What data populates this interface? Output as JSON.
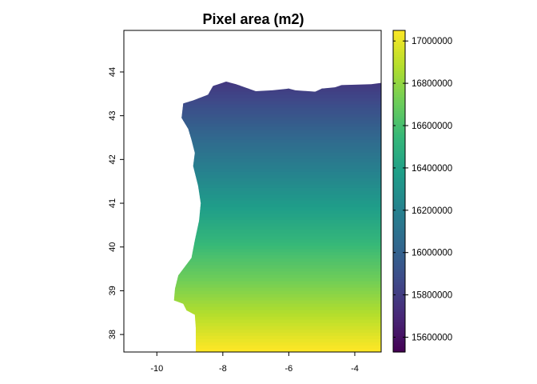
{
  "map": {
    "title": "Pixel area (m2)",
    "type": "raster",
    "extent": {
      "lon_min": -11.0,
      "lon_max": -3.2,
      "lat_min": 37.6,
      "lat_max": 44.95
    },
    "x_ticks": [
      {
        "value": -10,
        "label": "-10"
      },
      {
        "value": -8,
        "label": "-8"
      },
      {
        "value": -6,
        "label": "-6"
      },
      {
        "value": -4,
        "label": "-4"
      }
    ],
    "y_ticks": [
      {
        "value": 38,
        "label": "38"
      },
      {
        "value": 39,
        "label": "39"
      },
      {
        "value": 40,
        "label": "40"
      },
      {
        "value": 41,
        "label": "41"
      },
      {
        "value": 42,
        "label": "42"
      },
      {
        "value": 43,
        "label": "43"
      },
      {
        "value": 44,
        "label": "44"
      }
    ],
    "colormap": "viridis",
    "value_at_lat_min": 17060000,
    "value_at_lat_max": 15530000
  },
  "legend": {
    "min": 15530000,
    "max": 17050000,
    "ticks": [
      {
        "value": 15600000,
        "label": "15600000"
      },
      {
        "value": 15800000,
        "label": "15800000"
      },
      {
        "value": 16000000,
        "label": "16000000"
      },
      {
        "value": 16200000,
        "label": "16200000"
      },
      {
        "value": 16400000,
        "label": "16400000"
      },
      {
        "value": 16600000,
        "label": "16600000"
      },
      {
        "value": 16800000,
        "label": "16800000"
      },
      {
        "value": 17000000,
        "label": "17000000"
      }
    ]
  },
  "colors": {
    "viridis": [
      "#440154",
      "#482878",
      "#3E4A89",
      "#31688E",
      "#26828E",
      "#1F9E89",
      "#35B779",
      "#6DCD59",
      "#B4DE2C",
      "#FDE725"
    ],
    "no_data": "#ffffff",
    "frame": "#000000"
  },
  "land_outline": {
    "west_coast": [
      [
        44.95,
        -3.2
      ],
      [
        43.75,
        -3.2
      ],
      [
        43.72,
        -3.5
      ],
      [
        43.7,
        -4.4
      ],
      [
        43.65,
        -4.6
      ],
      [
        43.62,
        -5.0
      ],
      [
        43.55,
        -5.2
      ],
      [
        43.58,
        -5.8
      ],
      [
        43.62,
        -6.0
      ],
      [
        43.58,
        -6.5
      ],
      [
        43.56,
        -7.0
      ],
      [
        43.72,
        -7.6
      ],
      [
        43.78,
        -7.9
      ],
      [
        43.68,
        -8.3
      ],
      [
        43.48,
        -8.45
      ],
      [
        43.35,
        -8.9
      ],
      [
        43.28,
        -9.2
      ],
      [
        42.95,
        -9.25
      ],
      [
        42.7,
        -9.05
      ],
      [
        42.45,
        -8.95
      ],
      [
        42.15,
        -8.85
      ],
      [
        41.85,
        -8.9
      ],
      [
        41.4,
        -8.75
      ],
      [
        41.0,
        -8.67
      ],
      [
        40.6,
        -8.72
      ],
      [
        40.15,
        -8.85
      ],
      [
        39.75,
        -8.95
      ],
      [
        39.35,
        -9.35
      ],
      [
        39.05,
        -9.45
      ],
      [
        38.78,
        -9.48
      ],
      [
        38.7,
        -9.2
      ],
      [
        38.55,
        -9.1
      ],
      [
        38.45,
        -8.85
      ],
      [
        38.15,
        -8.82
      ],
      [
        37.95,
        -8.82
      ],
      [
        37.6,
        -8.82
      ]
    ]
  }
}
